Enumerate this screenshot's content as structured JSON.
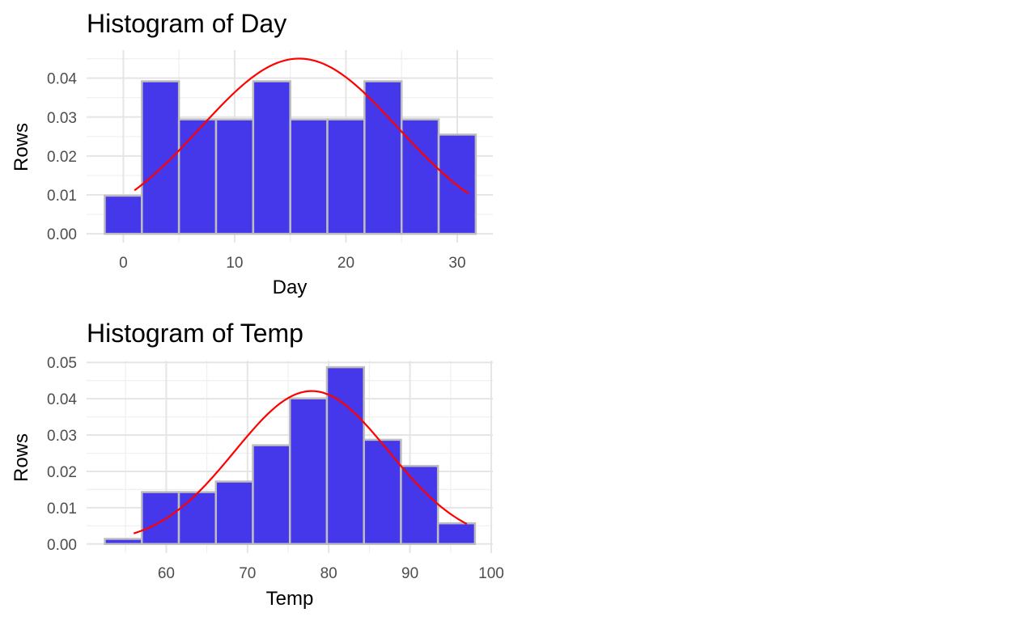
{
  "colors": {
    "bar_fill": "#4438ea",
    "bar_outline": "#bdbdbd",
    "curve": "#ff0000"
  },
  "chart_data": [
    {
      "type": "bar",
      "title": "Histogram of Day",
      "xlabel": "Day",
      "ylabel": "Rows",
      "xlim": [
        -3.3,
        33.2
      ],
      "ylim": [
        -0.00225,
        0.0472
      ],
      "x_ticks": [
        0,
        10,
        20,
        30
      ],
      "y_ticks": [
        0.0,
        0.01,
        0.02,
        0.03,
        0.04
      ],
      "y_tick_labels": [
        "0.00",
        "0.01",
        "0.02",
        "0.03",
        "0.04"
      ],
      "bin_width": 3.333,
      "bins_start": [
        -1.667,
        1.667,
        5.0,
        8.333,
        11.667,
        15.0,
        18.333,
        21.667,
        25.0,
        28.333
      ],
      "values": [
        0.0098,
        0.0392,
        0.0294,
        0.0294,
        0.0392,
        0.0294,
        0.0294,
        0.0392,
        0.0294,
        0.0255
      ],
      "normal_curve": {
        "mean": 15.8,
        "sd": 8.86,
        "from": 1,
        "to": 31
      },
      "grid": true
    },
    {
      "type": "bar",
      "title": "Histogram of Temp",
      "xlabel": "Temp",
      "ylabel": "Rows",
      "xlim": [
        50.2,
        100.2
      ],
      "ylim": [
        -0.0025,
        0.0505
      ],
      "x_ticks": [
        60,
        70,
        80,
        90,
        100
      ],
      "y_ticks": [
        0.0,
        0.01,
        0.02,
        0.03,
        0.04,
        0.05
      ],
      "y_tick_labels": [
        "0.00",
        "0.01",
        "0.02",
        "0.03",
        "0.04",
        "0.05"
      ],
      "bin_width": 4.556,
      "bins_start": [
        52.444,
        57.0,
        61.556,
        66.111,
        70.667,
        75.222,
        79.778,
        84.333,
        88.889,
        93.444
      ],
      "values": [
        0.0014,
        0.0143,
        0.0143,
        0.0172,
        0.0272,
        0.0401,
        0.0487,
        0.0287,
        0.0215,
        0.0057
      ],
      "normal_curve": {
        "mean": 77.9,
        "sd": 9.47,
        "from": 56,
        "to": 97
      },
      "grid": true
    }
  ]
}
